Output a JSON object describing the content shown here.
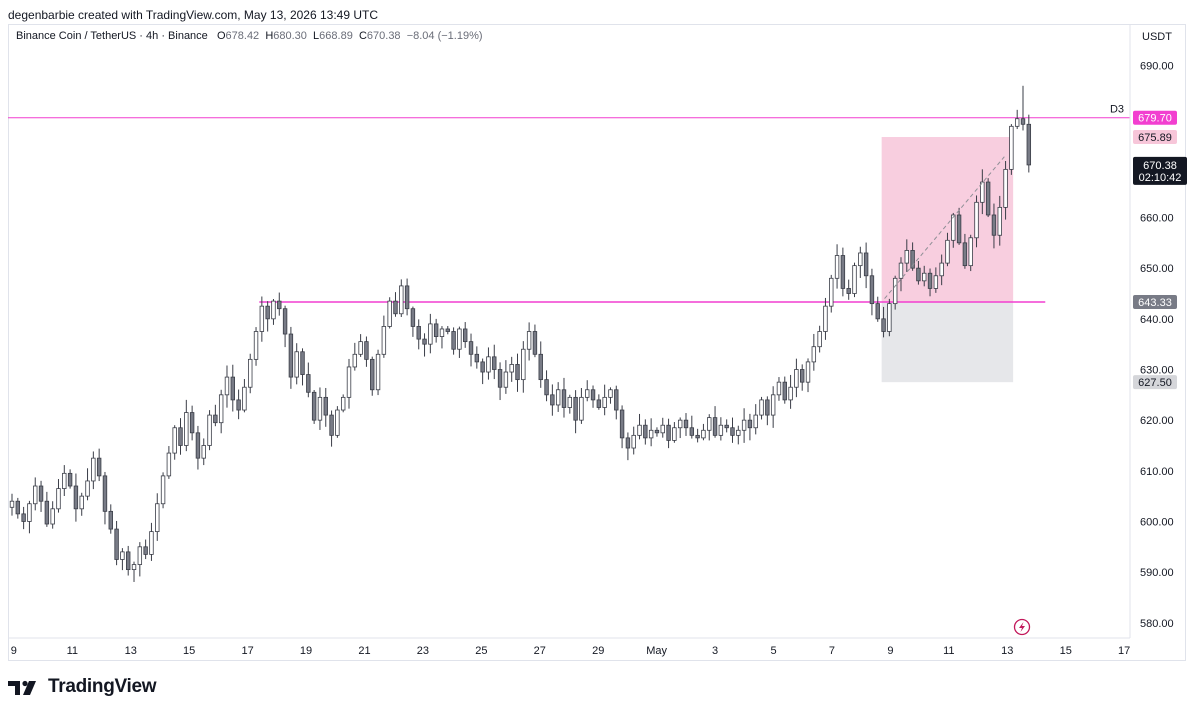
{
  "header": {
    "attribution": "degenbarbie created with TradingView.com, May 13, 2026 13:49 UTC"
  },
  "symbol": {
    "name": "Binance Coin / TetherUS · 4h · Binance",
    "open_label": "O",
    "open": "678.42",
    "high_label": "H",
    "high": "680.30",
    "low_label": "L",
    "low": "668.89",
    "close_label": "C",
    "close": "670.38",
    "change": "−8.04 (−1.19%)"
  },
  "axis": {
    "unit": "USDT"
  },
  "footer": {
    "brand": "TradingView"
  },
  "colors": {
    "level_line": "#f23fd0",
    "profit_zone": "#f7c6d9",
    "stop_zone": "#e6e7ea",
    "candle_up_fill": "#ffffff",
    "candle_down_fill": "#787b86",
    "candle_stroke": "#3a3d47"
  },
  "chart_data": {
    "type": "candlestick",
    "ylim": [
      577,
      698
    ],
    "y_ticks": [
      "580.00",
      "590.00",
      "600.00",
      "610.00",
      "620.00",
      "630.00",
      "640.00",
      "650.00",
      "660.00",
      "670.00",
      "680.00",
      "690.00"
    ],
    "x_ticks": [
      {
        "label": "9",
        "day": 9
      },
      {
        "label": "11",
        "day": 11
      },
      {
        "label": "13",
        "day": 13
      },
      {
        "label": "15",
        "day": 15
      },
      {
        "label": "17",
        "day": 17
      },
      {
        "label": "19",
        "day": 19
      },
      {
        "label": "21",
        "day": 21
      },
      {
        "label": "23",
        "day": 23
      },
      {
        "label": "25",
        "day": 25
      },
      {
        "label": "27",
        "day": 27
      },
      {
        "label": "29",
        "day": 29
      },
      {
        "label": "May",
        "day": 31
      },
      {
        "label": "3",
        "day": 33
      },
      {
        "label": "5",
        "day": 35
      },
      {
        "label": "7",
        "day": 37
      },
      {
        "label": "9",
        "day": 39
      },
      {
        "label": "11",
        "day": 41
      },
      {
        "label": "13",
        "day": 43
      },
      {
        "label": "15",
        "day": 45
      },
      {
        "label": "17",
        "day": 47
      }
    ],
    "x_day_range": [
      8.8,
      47.2
    ],
    "levels": [
      {
        "name": "D3",
        "price": 679.7,
        "label": "679.70",
        "from_day": 8.8,
        "to_day": 47.2
      },
      {
        "name": "",
        "price": 643.33,
        "label": "643.33",
        "from_day": 17.4,
        "to_day": 44.3
      }
    ],
    "position": {
      "from_day": 38.7,
      "to_day": 43.2,
      "target": 675.89,
      "target_label": "675.89",
      "entry": 643.33,
      "stop": 627.5,
      "stop_label": "627.50"
    },
    "projection_line": {
      "from_day": 38.8,
      "from_price": 644.0,
      "to_day": 42.9,
      "to_price": 672.0
    },
    "last_price": {
      "price": 670.38,
      "label": "670.38",
      "countdown": "02:10:42"
    },
    "closes": [
      604.0,
      601.5,
      600.0,
      603.5,
      607.0,
      604.0,
      599.5,
      602.5,
      606.5,
      609.5,
      607.0,
      602.5,
      605.0,
      608.0,
      612.5,
      609.0,
      602.0,
      598.5,
      592.5,
      594.0,
      590.5,
      591.5,
      595.0,
      593.5,
      598.0,
      603.5,
      609.0,
      613.5,
      618.5,
      615.0,
      621.5,
      617.5,
      612.5,
      615.0,
      621.0,
      619.5,
      625.0,
      628.5,
      624.0,
      622.0,
      626.5,
      632.0,
      637.5,
      642.5,
      640.0,
      643.5,
      642.0,
      637.0,
      628.5,
      633.5,
      629.0,
      625.5,
      620.0,
      624.5,
      621.0,
      617.0,
      622.0,
      624.5,
      630.5,
      633.0,
      635.5,
      632.0,
      626.0,
      633.0,
      638.5,
      643.5,
      641.0,
      646.5,
      642.0,
      638.5,
      636.0,
      635.0,
      639.0,
      636.5,
      638.0,
      637.5,
      634.0,
      638.0,
      635.5,
      633.0,
      631.5,
      629.5,
      632.5,
      630.0,
      626.5,
      629.5,
      631.0,
      628.0,
      634.0,
      637.5,
      633.0,
      628.0,
      625.0,
      623.0,
      626.0,
      622.5,
      624.5,
      620.0,
      624.5,
      626.0,
      624.0,
      622.5,
      624.5,
      626.0,
      622.0,
      616.5,
      614.5,
      617.0,
      619.0,
      616.5,
      618.0,
      617.5,
      619.0,
      616.0,
      618.5,
      620.0,
      618.5,
      617.0,
      616.5,
      618.0,
      620.5,
      617.0,
      619.0,
      618.5,
      617.0,
      618.0,
      620.0,
      618.5,
      621.0,
      624.0,
      621.0,
      625.0,
      627.5,
      624.0,
      626.5,
      630.0,
      627.5,
      631.5,
      634.5,
      637.5,
      642.5,
      648.0,
      652.5,
      646.0,
      645.0,
      650.5,
      653.0,
      648.5,
      643.0,
      640.0,
      637.5,
      643.0,
      648.0,
      651.0,
      653.5,
      650.0,
      647.5,
      649.0,
      646.0,
      648.5,
      651.0,
      655.5,
      660.5,
      655.0,
      650.5,
      656.0,
      663.0,
      667.0,
      660.5,
      656.5,
      662.0,
      669.5,
      678.0,
      679.5,
      678.4,
      670.38
    ]
  }
}
